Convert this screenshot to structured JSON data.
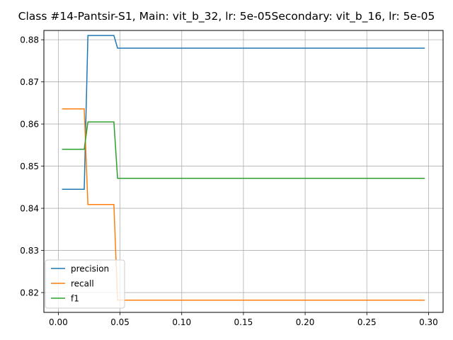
{
  "chart_data": {
    "type": "line",
    "title": "Class #14-Pantsir-S1, Main: vit_b_32, lr: 5e-05Secondary: vit_b_16, lr: 5e-05",
    "xlabel": "",
    "ylabel": "",
    "xlim": [
      -0.0117,
      0.3118
    ],
    "ylim": [
      0.8153,
      0.8822
    ],
    "grid": true,
    "legend": "lower-left",
    "x_ticks": [
      0.0,
      0.05,
      0.1,
      0.15,
      0.2,
      0.25,
      0.3
    ],
    "x_tick_labels": [
      "0.00",
      "0.05",
      "0.10",
      "0.15",
      "0.20",
      "0.25",
      "0.30"
    ],
    "y_ticks": [
      0.82,
      0.83,
      0.84,
      0.85,
      0.86,
      0.87,
      0.88
    ],
    "y_tick_labels": [
      "0.82",
      "0.83",
      "0.84",
      "0.85",
      "0.86",
      "0.87",
      "0.88"
    ],
    "x": [
      0.003,
      0.021,
      0.024,
      0.045,
      0.048,
      0.297
    ],
    "series": [
      {
        "name": "precision",
        "color": "#1f77b4",
        "values": [
          0.8445,
          0.8445,
          0.881,
          0.881,
          0.878,
          0.878
        ]
      },
      {
        "name": "recall",
        "color": "#ff7f0e",
        "values": [
          0.8636,
          0.8636,
          0.8409,
          0.8409,
          0.8182,
          0.8182
        ]
      },
      {
        "name": "f1",
        "color": "#2ca02c",
        "values": [
          0.854,
          0.854,
          0.8605,
          0.8605,
          0.8471,
          0.8471
        ]
      }
    ]
  }
}
